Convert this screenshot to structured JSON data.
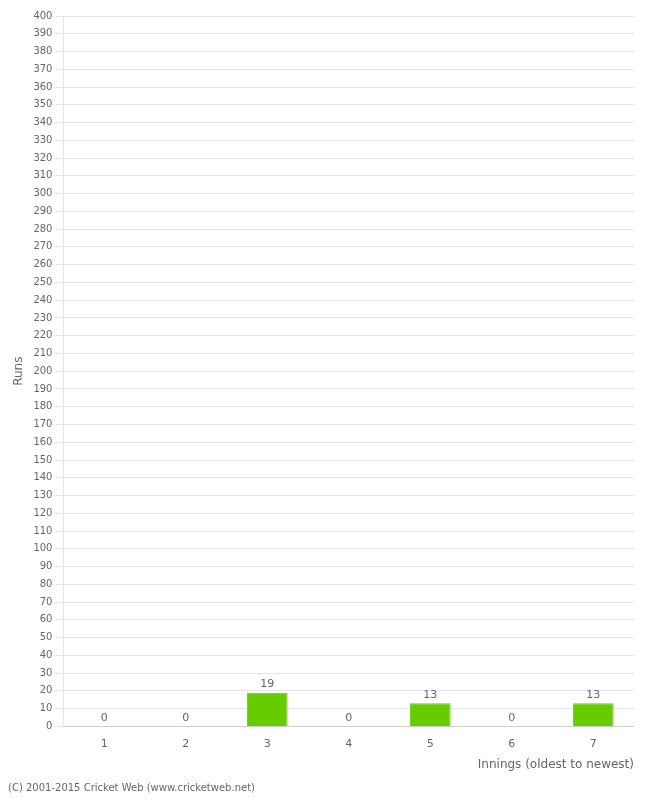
{
  "chart_data": {
    "type": "bar",
    "xlabel": "Innings (oldest to newest)",
    "ylabel": "Runs",
    "categories": [
      1,
      2,
      3,
      4,
      5,
      6,
      7
    ],
    "values": [
      0,
      0,
      19,
      0,
      13,
      0,
      13
    ],
    "color": "#66cc00",
    "ylim": [
      0,
      400
    ],
    "yticks": [
      0,
      10,
      20,
      30,
      40,
      50,
      60,
      70,
      80,
      90,
      100,
      110,
      120,
      130,
      140,
      150,
      160,
      170,
      180,
      190,
      200,
      210,
      220,
      230,
      240,
      250,
      260,
      270,
      280,
      290,
      300,
      310,
      320,
      330,
      340,
      350,
      360,
      370,
      380,
      390,
      400
    ],
    "grid": true,
    "data_labels": true,
    "annotations": [
      "(C) 2001-2015 Cricket Web (www.cricketweb.net)"
    ]
  }
}
